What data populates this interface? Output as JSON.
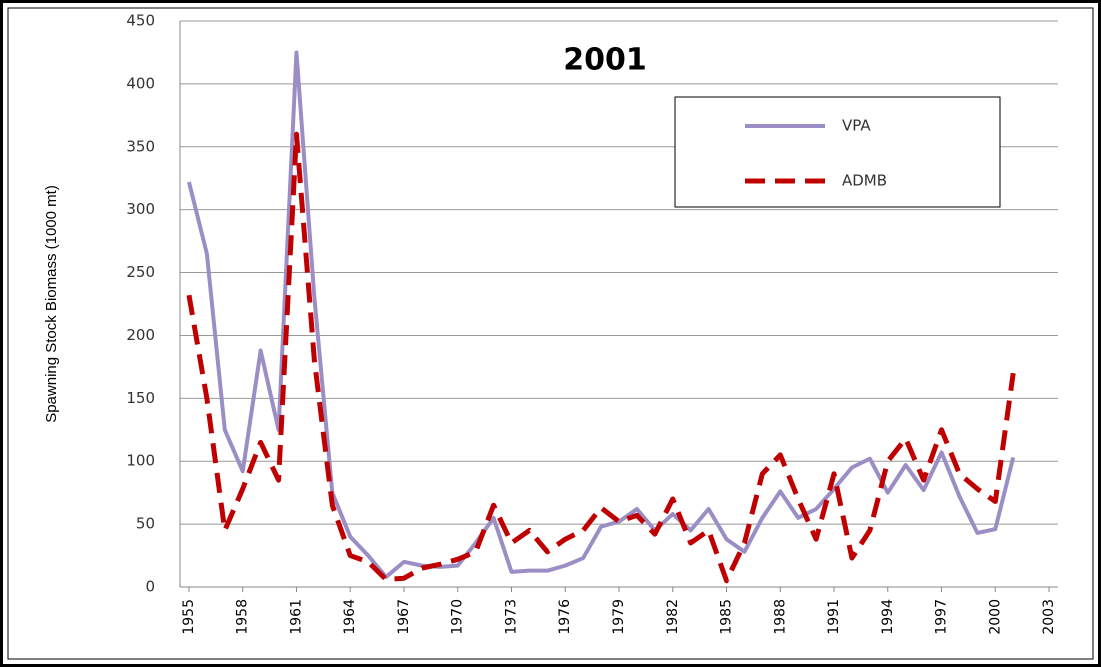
{
  "chart_data": {
    "type": "line",
    "title": "2001",
    "y_label": "Spawning Stock Biomass (1000 mt)",
    "x": [
      1955,
      1956,
      1957,
      1958,
      1959,
      1960,
      1961,
      1962,
      1963,
      1964,
      1965,
      1966,
      1967,
      1968,
      1969,
      1970,
      1971,
      1972,
      1973,
      1974,
      1975,
      1976,
      1977,
      1978,
      1979,
      1980,
      1981,
      1982,
      1983,
      1984,
      1985,
      1986,
      1987,
      1988,
      1989,
      1990,
      1991,
      1992,
      1993,
      1994,
      1995,
      1996,
      1997,
      1998,
      1999,
      2000,
      2001
    ],
    "series": [
      {
        "name": "VPA",
        "color": "#9b8ec4",
        "dash": false,
        "values": [
          322,
          265,
          125,
          92,
          188,
          125,
          425,
          230,
          75,
          40,
          25,
          8,
          20,
          17,
          16,
          17,
          35,
          55,
          12,
          13,
          13,
          17,
          23,
          48,
          52,
          62,
          45,
          58,
          45,
          62,
          38,
          28,
          55,
          76,
          55,
          62,
          78,
          95,
          102,
          75,
          97,
          77,
          107,
          72,
          43,
          46,
          103
        ]
      },
      {
        "name": "ADMB",
        "color": "#c00000",
        "dash": true,
        "values": [
          232,
          150,
          45,
          78,
          115,
          85,
          360,
          180,
          65,
          25,
          20,
          6,
          7,
          15,
          18,
          22,
          28,
          65,
          35,
          45,
          28,
          38,
          45,
          63,
          52,
          57,
          42,
          70,
          35,
          45,
          5,
          35,
          90,
          105,
          70,
          38,
          90,
          23,
          45,
          100,
          118,
          85,
          125,
          90,
          78,
          68,
          170
        ]
      }
    ],
    "xlim": [
      1954.5,
      2003.5
    ],
    "xticks": [
      1955,
      1958,
      1961,
      1964,
      1967,
      1970,
      1973,
      1976,
      1979,
      1982,
      1985,
      1988,
      1991,
      1994,
      1997,
      2000,
      2003
    ],
    "ylim": [
      0,
      450
    ],
    "yticks": [
      0,
      50,
      100,
      150,
      200,
      250,
      300,
      350,
      400,
      450
    ],
    "grid": true,
    "legend": "upper right"
  }
}
